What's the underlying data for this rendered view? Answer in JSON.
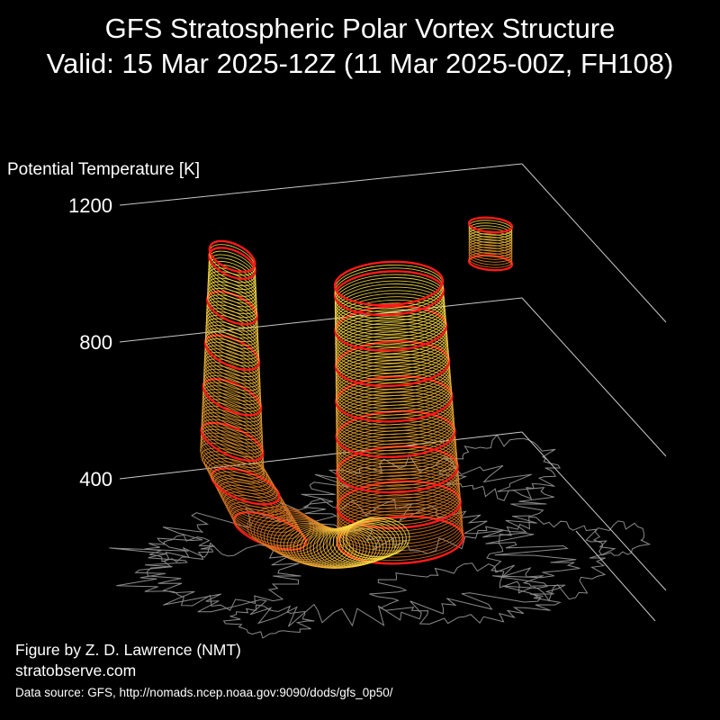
{
  "header": {
    "title": "GFS Stratospheric Polar Vortex Structure",
    "subtitle": "Valid: 15 Mar 2025-12Z  (11 Mar 2025-00Z, FH108)"
  },
  "footer": {
    "author": "Figure by Z. D. Lawrence (NMT)",
    "site": "stratobserve.com",
    "source": "Data source: GFS, http://nomads.ncep.noaa.gov:9090/dods/gfs_0p50/"
  },
  "colors": {
    "background": "#000000",
    "text": "#ffffff",
    "axis": "#c8c8c8",
    "coastline": "#8a8a8a",
    "contour_highlight": "#ff1a1a",
    "isosurface_low": "#d2691e",
    "isosurface_high": "#ffe94a"
  },
  "chart_data": {
    "type": "3d-isosurface",
    "zlabel": "Potential Temperature [K]",
    "zticks": [
      400,
      800,
      1200
    ],
    "zlim": [
      0,
      1300
    ],
    "grid": true,
    "components": [
      {
        "name": "",
        "base_theta": 330,
        "top_theta": 1130
      },
      {
        "name": "",
        "base_theta": 330,
        "top_theta": 1050
      },
      {
        "name": "",
        "base_theta": 1040,
        "top_theta": 1190
      }
    ]
  }
}
